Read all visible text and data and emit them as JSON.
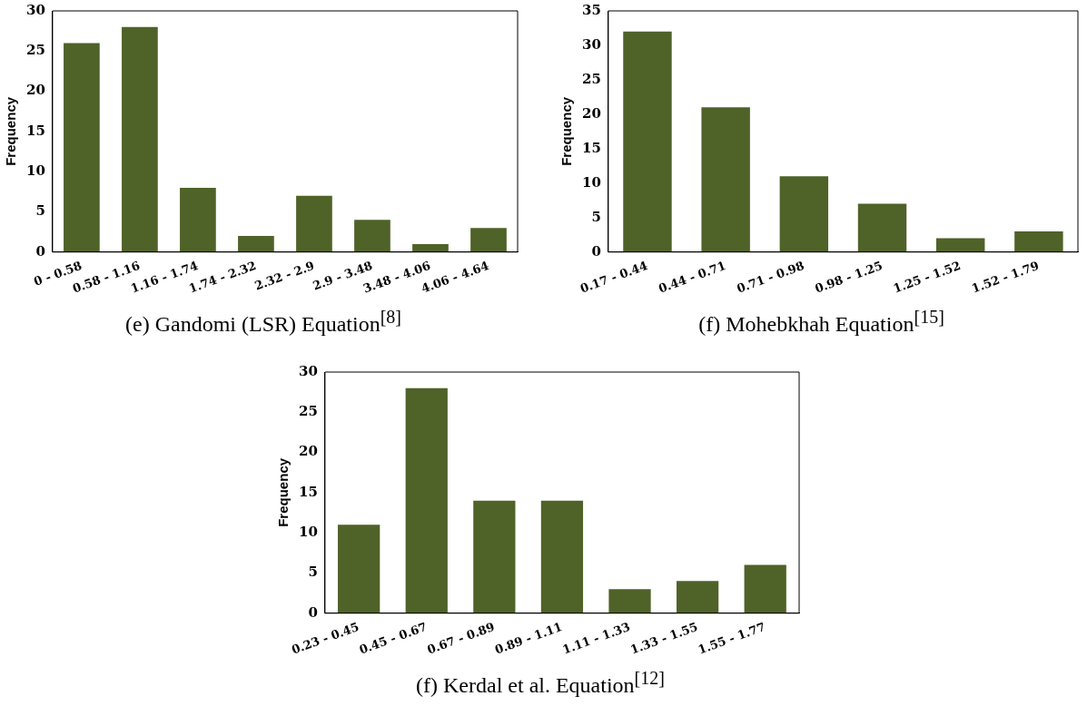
{
  "chart_data": [
    {
      "type": "bar",
      "title": "(e) Gandomi (LSR) Equation$^{[8]}$",
      "ylabel": "Frequency",
      "categories": [
        "0 - 0.58",
        "0.58 - 1.16",
        "1.16 - 1.74",
        "1.74 - 2.32",
        "2.32 - 2.9",
        "2.9 - 3.48",
        "3.48 - 4.06",
        "4.06 - 4.64"
      ],
      "values": [
        26,
        28,
        8,
        2,
        7,
        4,
        1,
        3
      ],
      "color": "#4f6228",
      "ylim": [
        0,
        30
      ],
      "yticks": [
        0,
        5,
        10,
        15,
        20,
        25,
        30
      ],
      "grid": false,
      "legend": false
    },
    {
      "type": "bar",
      "title": "(f) Mohebkhah Equation$^{[15]}$",
      "ylabel": "Frequency",
      "categories": [
        "0.17 - 0.44",
        "0.44 - 0.71",
        "0.71 - 0.98",
        "0.98 - 1.25",
        "1.25 - 1.52",
        "1.52 - 1.79"
      ],
      "values": [
        32,
        21,
        11,
        7,
        2,
        3
      ],
      "color": "#4f6228",
      "ylim": [
        0,
        35
      ],
      "yticks": [
        0,
        5,
        10,
        15,
        20,
        25,
        30,
        35
      ],
      "grid": false,
      "legend": false
    },
    {
      "type": "bar",
      "title": "(f) Kerdal et al. Equation$^{[12]}$",
      "ylabel": "Frequency",
      "categories": [
        "0.23 - 0.45",
        "0.45 - 0.67",
        "0.67 - 0.89",
        "0.89 - 1.11",
        "1.11 - 1.33",
        "1.33 - 1.55",
        "1.55 - 1.77"
      ],
      "values": [
        11,
        28,
        14,
        14,
        3,
        4,
        6
      ],
      "color": "#4f6228",
      "ylim": [
        0,
        30
      ],
      "yticks": [
        0,
        5,
        10,
        15,
        20,
        25,
        30
      ],
      "grid": false,
      "legend": false
    }
  ]
}
